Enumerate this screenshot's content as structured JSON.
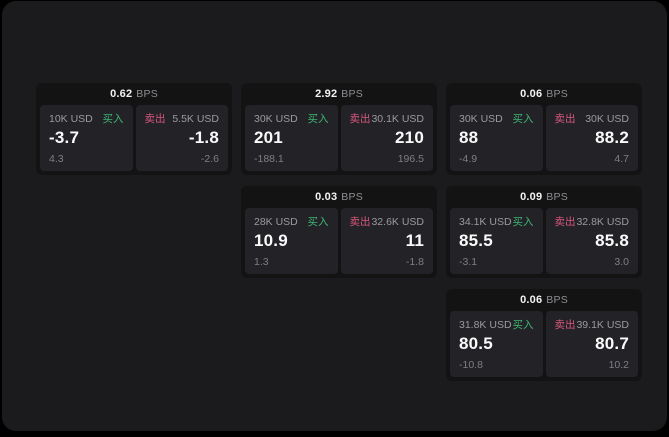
{
  "window": {
    "outer_background": "#000000",
    "panel_background": "#1b1b1d"
  },
  "labels": {
    "bps_unit": "BPS",
    "buy": "买入",
    "sell": "卖出"
  },
  "colors": {
    "buy_text": "#3eb575",
    "sell_text": "#d9567c",
    "card_background": "#131314",
    "tile_background": "#232327",
    "primary_text": "#fafafa",
    "muted_text": "#9b9b9f",
    "faint_text": "#7e7e84"
  },
  "cards": [
    {
      "bps_value": "0.62",
      "grid": {
        "row": 1,
        "col": 1
      },
      "buy": {
        "size": "10K USD",
        "value": "-3.7",
        "sub_value": "4.3"
      },
      "sell": {
        "size": "5.5K USD",
        "value": "-1.8",
        "sub_value": "-2.6"
      }
    },
    {
      "bps_value": "2.92",
      "grid": {
        "row": 1,
        "col": 2
      },
      "buy": {
        "size": "30K USD",
        "value": "201",
        "sub_value": "-188.1"
      },
      "sell": {
        "size": "30.1K USD",
        "value": "210",
        "sub_value": "196.5"
      }
    },
    {
      "bps_value": "0.06",
      "grid": {
        "row": 1,
        "col": 3
      },
      "buy": {
        "size": "30K USD",
        "value": "88",
        "sub_value": "-4.9"
      },
      "sell": {
        "size": "30K USD",
        "value": "88.2",
        "sub_value": "4.7"
      }
    },
    {
      "bps_value": "0.03",
      "grid": {
        "row": 2,
        "col": 2
      },
      "buy": {
        "size": "28K USD",
        "value": "10.9",
        "sub_value": "1.3"
      },
      "sell": {
        "size": "32.6K USD",
        "value": "11",
        "sub_value": "-1.8"
      }
    },
    {
      "bps_value": "0.09",
      "grid": {
        "row": 2,
        "col": 3
      },
      "buy": {
        "size": "34.1K USD",
        "value": "85.5",
        "sub_value": "-3.1"
      },
      "sell": {
        "size": "32.8K USD",
        "value": "85.8",
        "sub_value": "3.0"
      }
    },
    {
      "bps_value": "0.06",
      "grid": {
        "row": 3,
        "col": 3
      },
      "buy": {
        "size": "31.8K USD",
        "value": "80.5",
        "sub_value": "-10.8"
      },
      "sell": {
        "size": "39.1K USD",
        "value": "80.7",
        "sub_value": "10.2"
      }
    }
  ]
}
